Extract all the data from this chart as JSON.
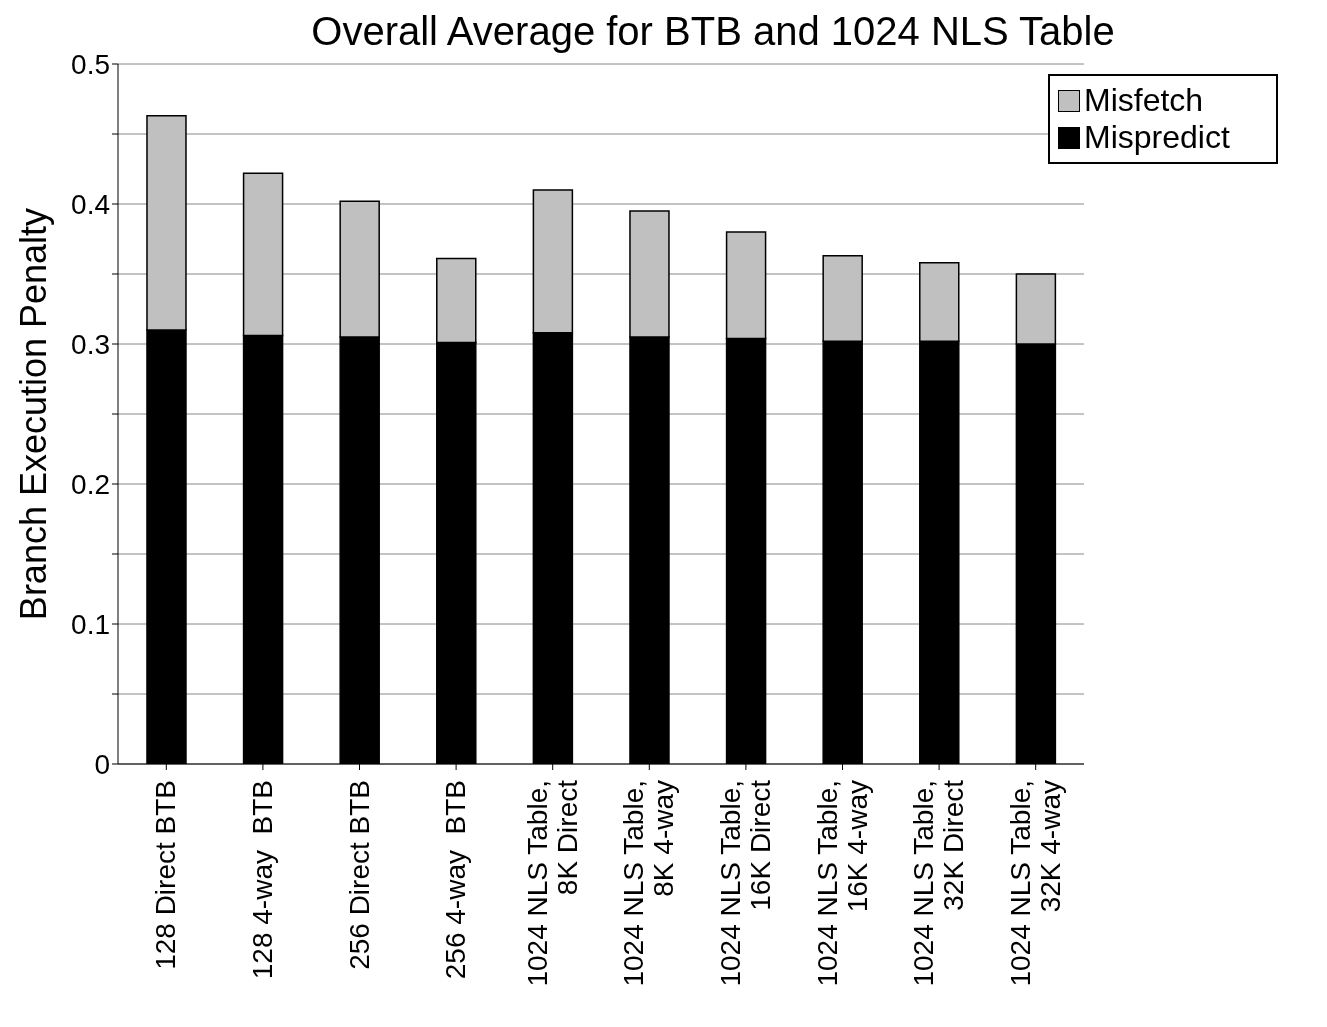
{
  "chart_data": {
    "type": "bar",
    "title": "Overall Average for BTB and 1024 NLS Table",
    "ylabel": "Branch Execution Penalty",
    "categories": [
      "128 Direct BTB",
      "128 4-way  BTB",
      "256 Direct BTB",
      "256 4-way  BTB",
      "1024 NLS Table,\n8K Direct",
      "1024 NLS Table,\n8K 4-way",
      "1024 NLS Table,\n16K Direct",
      "1024 NLS Table,\n16K 4-way",
      "1024 NLS Table,\n32K Direct",
      "1024 NLS Table,\n32K 4-way"
    ],
    "stacked": true,
    "series": [
      {
        "name": "Mispredict",
        "color": "#000000",
        "values": [
          0.31,
          0.306,
          0.305,
          0.301,
          0.308,
          0.305,
          0.304,
          0.302,
          0.302,
          0.3
        ]
      },
      {
        "name": "Misfetch",
        "color": "#c0c0c0",
        "values": [
          0.153,
          0.116,
          0.097,
          0.06,
          0.102,
          0.09,
          0.076,
          0.061,
          0.056,
          0.05
        ]
      }
    ],
    "ylim": [
      0,
      0.5
    ],
    "yticks": [
      0,
      {
        "value": 0.05,
        "label": null
      },
      0.1,
      {
        "value": 0.15,
        "label": null
      },
      0.2,
      {
        "value": 0.25,
        "label": null
      },
      0.3,
      {
        "value": 0.35,
        "label": null
      },
      0.4,
      {
        "value": 0.45,
        "label": null
      },
      0.5
    ],
    "grid": "y",
    "legend": "top right"
  }
}
